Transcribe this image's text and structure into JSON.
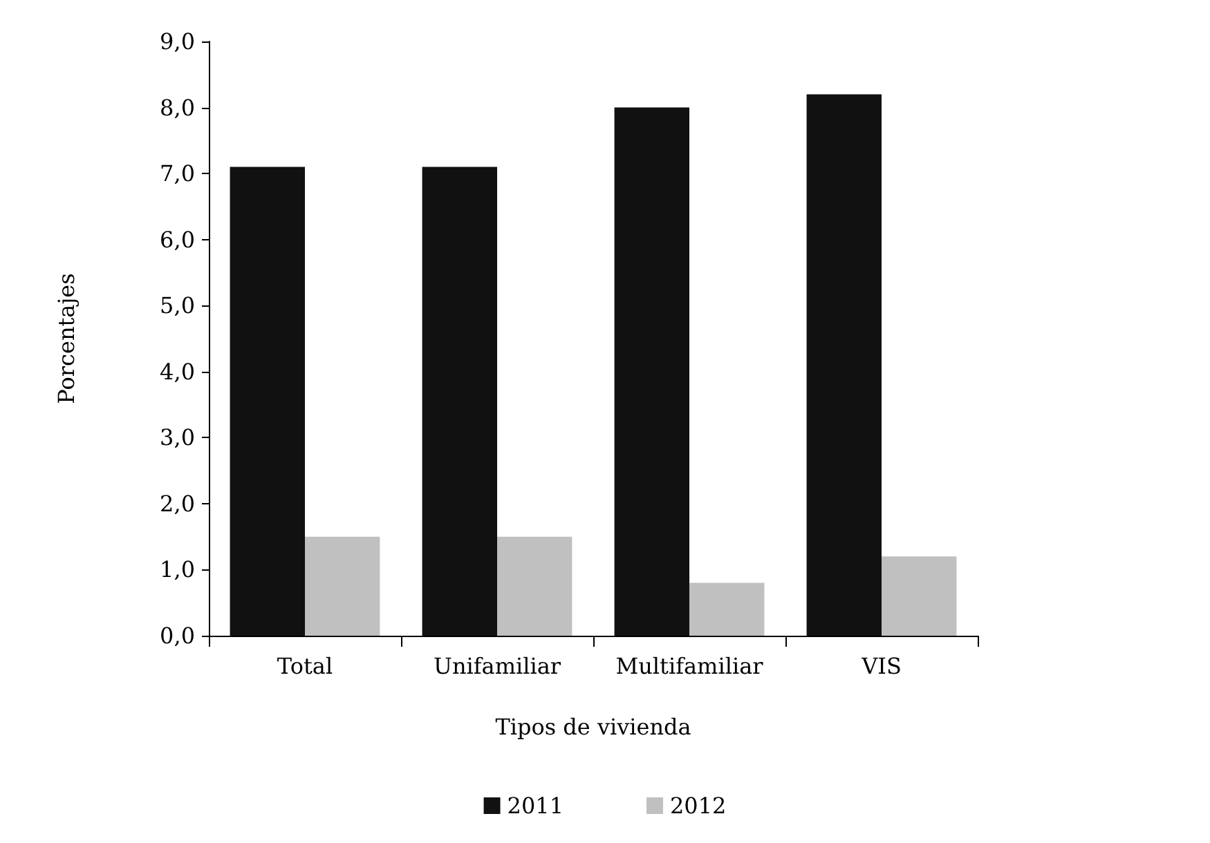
{
  "chart_data": {
    "type": "bar",
    "xlabel": "Tipos de vivienda",
    "ylabel": "Porcentajes",
    "categories": [
      "Total",
      "Unifamiliar",
      "Multifamiliar",
      "VIS"
    ],
    "series": [
      {
        "name": "2011",
        "color": "#111111",
        "values": [
          7.1,
          7.1,
          8.0,
          8.2
        ]
      },
      {
        "name": "2012",
        "color": "#c0c0c0",
        "values": [
          1.5,
          1.5,
          0.8,
          1.2
        ]
      }
    ],
    "ylim": [
      0,
      9
    ],
    "yticks": [
      {
        "value": 0,
        "label": "0,0"
      },
      {
        "value": 1,
        "label": "1,0"
      },
      {
        "value": 2,
        "label": "2,0"
      },
      {
        "value": 3,
        "label": "3,0"
      },
      {
        "value": 4,
        "label": "4,0"
      },
      {
        "value": 5,
        "label": "5,0"
      },
      {
        "value": 6,
        "label": "6,0"
      },
      {
        "value": 7,
        "label": "7,0"
      },
      {
        "value": 8,
        "label": "8,0"
      },
      {
        "value": 9,
        "label": "9,0"
      }
    ],
    "grid": false,
    "legend": "bottom"
  }
}
